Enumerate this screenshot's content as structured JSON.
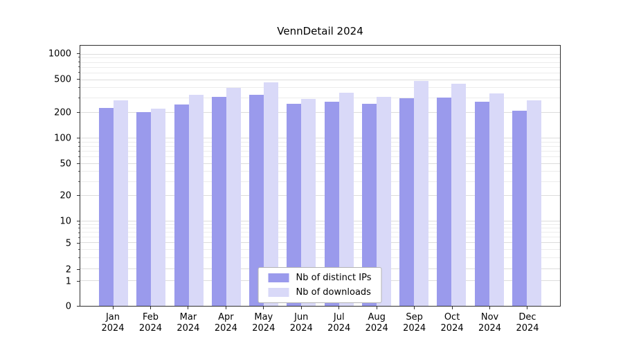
{
  "chart_data": {
    "type": "bar",
    "title": "VennDetail 2024",
    "categories": [
      "Jan",
      "Feb",
      "Mar",
      "Apr",
      "May",
      "Jun",
      "Jul",
      "Aug",
      "Sep",
      "Oct",
      "Nov",
      "Dec"
    ],
    "year": "2024",
    "series": [
      {
        "name": "Nb of distinct IPs",
        "color": "#9a9aec",
        "values": [
          230,
          205,
          255,
          315,
          330,
          260,
          275,
          260,
          300,
          305,
          275,
          215
        ]
      },
      {
        "name": "Nb of downloads",
        "color": "#d9d9f8",
        "values": [
          285,
          225,
          330,
          400,
          465,
          295,
          350,
          315,
          485,
          455,
          345,
          285
        ]
      }
    ],
    "y_ticks": [
      0,
      1,
      2,
      5,
      10,
      20,
      50,
      100,
      200,
      500,
      1000
    ],
    "minor_ticks": [
      3,
      4,
      6,
      7,
      8,
      9,
      30,
      40,
      60,
      70,
      80,
      90,
      300,
      400,
      600,
      700,
      800,
      900
    ],
    "ylim": [
      0,
      1000
    ],
    "scale": "log-like",
    "grid": "horizontal",
    "legend_position": "bottom-center",
    "xlabel": "",
    "ylabel": ""
  }
}
